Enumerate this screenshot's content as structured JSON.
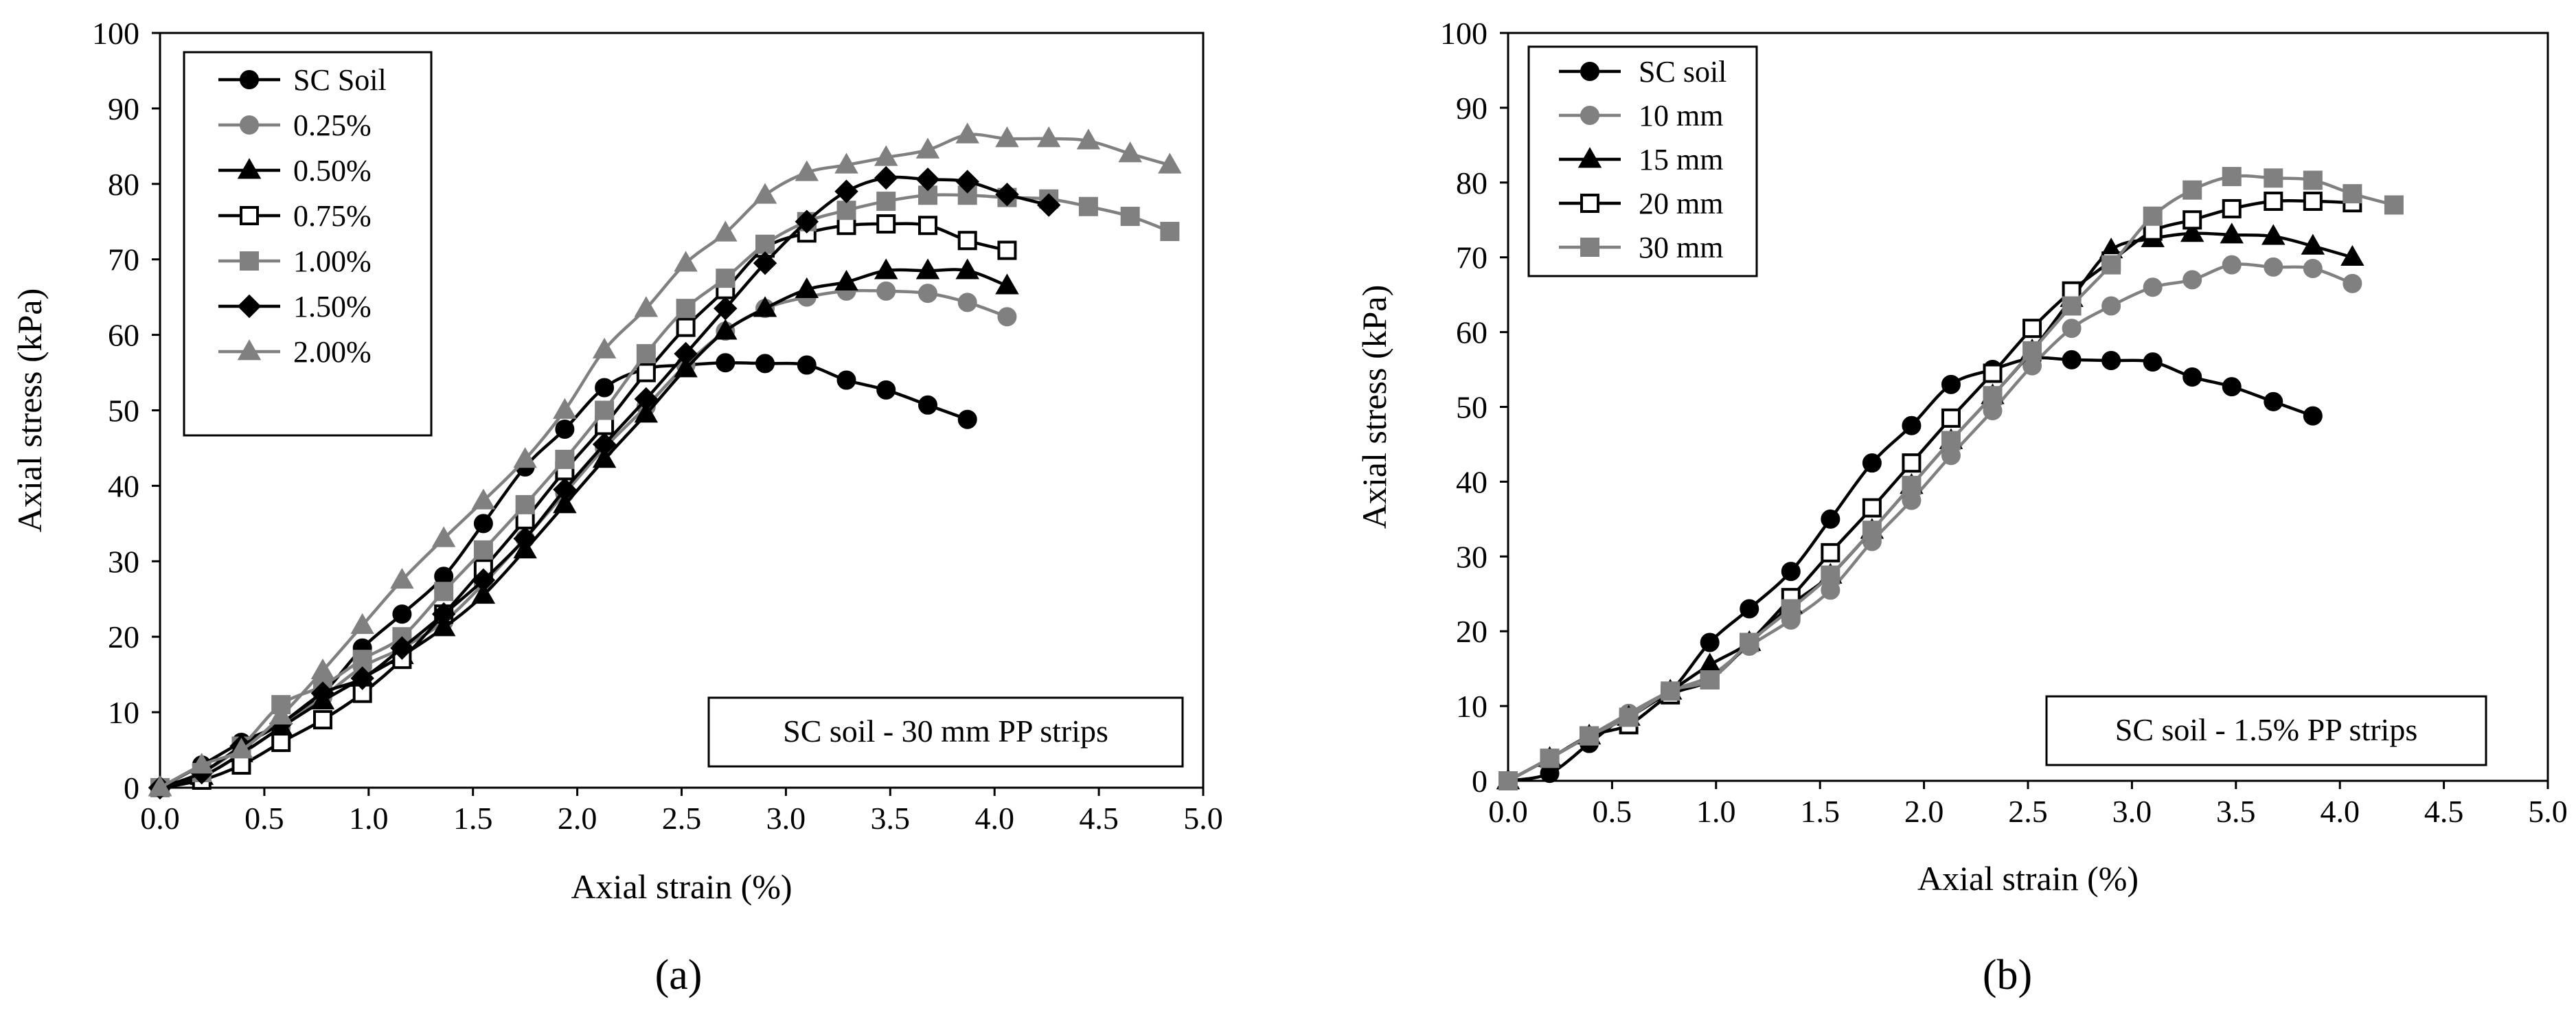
{
  "chart_data": [
    {
      "panel": "a",
      "panel_label": "(a)",
      "type": "line",
      "xlabel": "Axial strain (%)",
      "ylabel": "Axial stress (kPa)",
      "xlim": [
        0,
        5
      ],
      "ylim": [
        0,
        100
      ],
      "xticks": [
        "0.0",
        "0.5",
        "1.0",
        "1.5",
        "2.0",
        "2.5",
        "3.0",
        "3.5",
        "4.0",
        "4.5",
        "5.0"
      ],
      "yticks": [
        "0",
        "10",
        "20",
        "30",
        "40",
        "50",
        "60",
        "70",
        "80",
        "90",
        "100"
      ],
      "annotation": "SC soil - 30 mm PP strips",
      "legend_position": "top-left",
      "series": [
        {
          "name": "SC Soil",
          "color": "#000000",
          "marker": "circle",
          "fill": "#000000",
          "x": [
            0,
            0.2,
            0.39,
            0.58,
            0.78,
            0.97,
            1.16,
            1.36,
            1.55,
            1.75,
            1.94,
            2.13,
            2.33,
            2.52,
            2.71,
            2.9,
            3.1,
            3.29,
            3.48,
            3.68,
            3.87
          ],
          "y": [
            0,
            3,
            6,
            8.5,
            12.5,
            18.5,
            23,
            28,
            35,
            42.5,
            47.5,
            53,
            55.5,
            56,
            56.3,
            56.2,
            56,
            54,
            52.7,
            50.7,
            48.8
          ]
        },
        {
          "name": "0.25%",
          "color": "#808080",
          "marker": "circle",
          "fill": "#808080",
          "x": [
            0,
            0.2,
            0.39,
            0.58,
            0.78,
            0.97,
            1.16,
            1.36,
            1.55,
            1.75,
            1.94,
            2.13,
            2.33,
            2.52,
            2.71,
            2.9,
            3.1,
            3.29,
            3.48,
            3.68,
            3.87,
            4.06
          ],
          "y": [
            0,
            1.5,
            4.5,
            8,
            12,
            16,
            18.5,
            22,
            27,
            33,
            39,
            45,
            50.5,
            56,
            60.5,
            63.5,
            65,
            65.8,
            65.8,
            65.5,
            64.3,
            62.4
          ]
        },
        {
          "name": "0.50%",
          "color": "#000000",
          "marker": "triangle",
          "fill": "#000000",
          "x": [
            0,
            0.2,
            0.39,
            0.58,
            0.78,
            0.97,
            1.16,
            1.36,
            1.55,
            1.75,
            1.94,
            2.13,
            2.33,
            2.52,
            2.71,
            2.9,
            3.1,
            3.29,
            3.48,
            3.68,
            3.87,
            4.06
          ],
          "y": [
            0,
            1.5,
            4.5,
            8,
            11.5,
            14.5,
            17.5,
            21.2,
            25.5,
            31.5,
            37.5,
            43.5,
            49.5,
            55.5,
            60.5,
            63.5,
            66,
            67,
            68.5,
            68.5,
            68.5,
            66.5
          ]
        },
        {
          "name": "0.75%",
          "color": "#000000",
          "marker": "square-open",
          "fill": "#ffffff",
          "x": [
            0,
            0.2,
            0.39,
            0.58,
            0.78,
            0.97,
            1.16,
            1.36,
            1.55,
            1.75,
            1.94,
            2.13,
            2.33,
            2.52,
            2.71,
            2.9,
            3.1,
            3.29,
            3.48,
            3.68,
            3.87,
            4.06
          ],
          "y": [
            0,
            1,
            3,
            6,
            9,
            12.5,
            17,
            23,
            29,
            35.5,
            42,
            48,
            55,
            61,
            66,
            71.5,
            73.5,
            74.5,
            74.7,
            74.5,
            72.5,
            71.2
          ]
        },
        {
          "name": "1.00%",
          "color": "#808080",
          "marker": "square",
          "fill": "#808080",
          "x": [
            0,
            0.2,
            0.39,
            0.58,
            0.78,
            0.97,
            1.16,
            1.36,
            1.55,
            1.75,
            1.94,
            2.13,
            2.33,
            2.52,
            2.71,
            2.9,
            3.1,
            3.29,
            3.48,
            3.68,
            3.87,
            4.06,
            4.26,
            4.45,
            4.65,
            4.84
          ],
          "y": [
            0,
            2,
            5.5,
            11,
            13.5,
            17,
            20,
            26,
            31.5,
            37.5,
            43.5,
            50,
            57.5,
            63.5,
            67.5,
            72,
            75,
            76.5,
            77.7,
            78.5,
            78.5,
            78.2,
            78,
            77,
            75.7,
            73.7
          ]
        },
        {
          "name": "1.50%",
          "color": "#000000",
          "marker": "diamond",
          "fill": "#000000",
          "x": [
            0,
            0.2,
            0.39,
            0.58,
            0.78,
            0.97,
            1.16,
            1.36,
            1.55,
            1.75,
            1.94,
            2.13,
            2.33,
            2.52,
            2.71,
            2.9,
            3.1,
            3.29,
            3.48,
            3.68,
            3.87,
            4.06,
            4.26
          ],
          "y": [
            0,
            2,
            5.5,
            8.5,
            12.5,
            14.5,
            18.5,
            23,
            27.5,
            33,
            39.5,
            45.5,
            51.5,
            57.5,
            63.5,
            69.5,
            75,
            79,
            80.8,
            80.6,
            80.3,
            78.6,
            77.2
          ]
        },
        {
          "name": "2.00%",
          "color": "#808080",
          "marker": "triangle",
          "fill": "#808080",
          "x": [
            0,
            0.2,
            0.39,
            0.58,
            0.78,
            0.97,
            1.16,
            1.36,
            1.55,
            1.75,
            1.94,
            2.13,
            2.33,
            2.52,
            2.71,
            2.9,
            3.1,
            3.29,
            3.48,
            3.68,
            3.87,
            4.06,
            4.26,
            4.45,
            4.65,
            4.84
          ],
          "y": [
            0,
            3,
            5,
            9.5,
            15.5,
            21.5,
            27.5,
            33,
            38,
            43.5,
            50,
            58,
            63.5,
            69.5,
            73.5,
            78.5,
            81.5,
            82.5,
            83.5,
            84.5,
            86.5,
            86,
            86,
            85.7,
            84,
            82.5
          ]
        }
      ]
    },
    {
      "panel": "b",
      "panel_label": "(b)",
      "type": "line",
      "xlabel": "Axial strain (%)",
      "ylabel": "Axial stress (kPa)",
      "xlim": [
        0,
        5
      ],
      "ylim": [
        0,
        100
      ],
      "xticks": [
        "0.0",
        "0.5",
        "1.0",
        "1.5",
        "2.0",
        "2.5",
        "3.0",
        "3.5",
        "4.0",
        "4.5",
        "5.0"
      ],
      "yticks": [
        "0",
        "10",
        "20",
        "30",
        "40",
        "50",
        "60",
        "70",
        "80",
        "90",
        "100"
      ],
      "annotation": "SC soil - 1.5% PP strips",
      "legend_position": "top-left",
      "series": [
        {
          "name": "SC soil",
          "color": "#000000",
          "marker": "circle",
          "fill": "#000000",
          "x": [
            0,
            0.2,
            0.39,
            0.58,
            0.78,
            0.97,
            1.16,
            1.36,
            1.55,
            1.75,
            1.94,
            2.13,
            2.33,
            2.52,
            2.71,
            2.9,
            3.1,
            3.29,
            3.48,
            3.68,
            3.87
          ],
          "y": [
            0,
            1,
            5,
            9,
            12,
            18.5,
            23,
            28,
            35,
            42.5,
            47.5,
            53,
            55,
            56.5,
            56.3,
            56.2,
            56,
            54,
            52.7,
            50.7,
            48.8
          ]
        },
        {
          "name": "10 mm",
          "color": "#808080",
          "marker": "circle",
          "fill": "#808080",
          "x": [
            0,
            0.2,
            0.39,
            0.58,
            0.78,
            0.97,
            1.16,
            1.36,
            1.55,
            1.75,
            1.94,
            2.13,
            2.33,
            2.52,
            2.71,
            2.9,
            3.1,
            3.29,
            3.48,
            3.68,
            3.87,
            4.06
          ],
          "y": [
            0,
            3,
            6,
            9,
            12,
            14,
            18,
            21.5,
            25.5,
            32,
            37.5,
            43.5,
            49.5,
            55.5,
            60.5,
            63.5,
            66,
            67,
            69,
            68.7,
            68.5,
            66.5
          ]
        },
        {
          "name": "15 mm",
          "color": "#000000",
          "marker": "triangle",
          "fill": "#000000",
          "x": [
            0,
            0.2,
            0.39,
            0.58,
            0.78,
            0.97,
            1.16,
            1.36,
            1.55,
            1.75,
            1.94,
            2.13,
            2.33,
            2.52,
            2.71,
            2.9,
            3.1,
            3.29,
            3.48,
            3.68,
            3.87,
            4.06
          ],
          "y": [
            0,
            3,
            6,
            8.5,
            12,
            15.5,
            18.5,
            23.5,
            27.5,
            33.5,
            39.5,
            45.5,
            51.5,
            57.5,
            64.5,
            71,
            72.5,
            73.2,
            73,
            72.8,
            71.5,
            70
          ]
        },
        {
          "name": "20 mm",
          "color": "#000000",
          "marker": "square-open",
          "fill": "#ffffff",
          "x": [
            0,
            0.2,
            0.39,
            0.58,
            0.78,
            0.97,
            1.16,
            1.36,
            1.55,
            1.75,
            1.94,
            2.13,
            2.33,
            2.52,
            2.71,
            2.9,
            3.1,
            3.29,
            3.48,
            3.68,
            3.87,
            4.06
          ],
          "y": [
            0,
            3,
            6,
            7.5,
            11.5,
            13.5,
            18.5,
            24.5,
            30.5,
            36.5,
            42.5,
            48.5,
            54.5,
            60.5,
            65.5,
            69.5,
            73.5,
            75,
            76.5,
            77.5,
            77.5,
            77.3
          ]
        },
        {
          "name": "30 mm",
          "color": "#808080",
          "marker": "square",
          "fill": "#808080",
          "x": [
            0,
            0.2,
            0.39,
            0.58,
            0.78,
            0.97,
            1.16,
            1.36,
            1.55,
            1.75,
            1.94,
            2.13,
            2.33,
            2.52,
            2.71,
            2.9,
            3.1,
            3.29,
            3.48,
            3.68,
            3.87,
            4.06,
            4.26
          ],
          "y": [
            0,
            3,
            6,
            8.5,
            12,
            13.5,
            18.5,
            23,
            27.5,
            33.5,
            39.5,
            45.5,
            51.5,
            57.5,
            63.5,
            69,
            75.5,
            79,
            80.8,
            80.6,
            80.3,
            78.5,
            77
          ]
        }
      ]
    }
  ]
}
